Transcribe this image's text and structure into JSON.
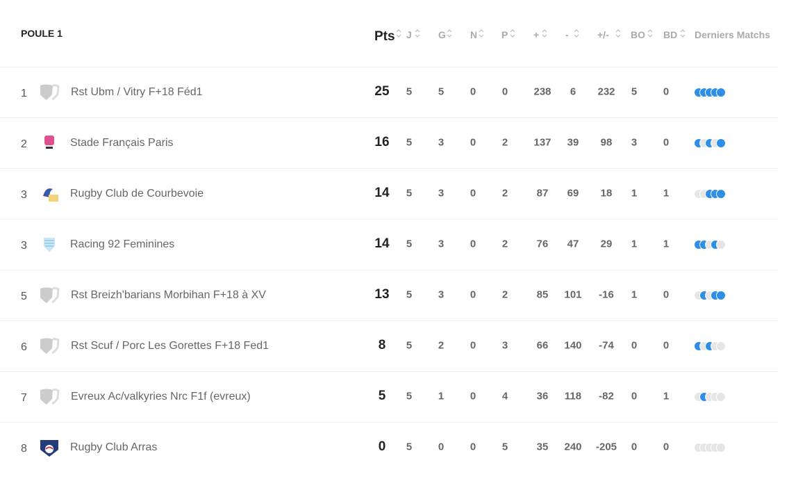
{
  "title": "POULE 1",
  "table": {
    "headers": [
      "Pts",
      "J",
      "G",
      "N",
      "P",
      "+",
      "-",
      "+/-",
      "BO",
      "BD",
      "Derniers Matchs"
    ],
    "rows": [
      {
        "rank": 1,
        "team": "Rst Ubm / Vitry F+18 Féd1",
        "pts": 25,
        "j": 5,
        "g": 5,
        "n": 0,
        "p": 0,
        "plus": 238,
        "minus": 6,
        "diff": 232,
        "bo": 5,
        "bd": 0,
        "form": [
          true,
          true,
          true,
          true,
          true
        ]
      },
      {
        "rank": 2,
        "team": "Stade Français Paris",
        "pts": 16,
        "j": 5,
        "g": 3,
        "n": 0,
        "p": 2,
        "plus": 137,
        "minus": 39,
        "diff": 98,
        "bo": 3,
        "bd": 0,
        "form": [
          true,
          false,
          true,
          false,
          true
        ]
      },
      {
        "rank": 3,
        "team": "Rugby Club de Courbevoie",
        "pts": 14,
        "j": 5,
        "g": 3,
        "n": 0,
        "p": 2,
        "plus": 87,
        "minus": 69,
        "diff": 18,
        "bo": 1,
        "bd": 1,
        "form": [
          false,
          false,
          true,
          true,
          true
        ]
      },
      {
        "rank": 3,
        "team": "Racing 92 Feminines",
        "pts": 14,
        "j": 5,
        "g": 3,
        "n": 0,
        "p": 2,
        "plus": 76,
        "minus": 47,
        "diff": 29,
        "bo": 1,
        "bd": 1,
        "form": [
          true,
          true,
          false,
          true,
          false
        ]
      },
      {
        "rank": 5,
        "team": "Rst Breizh'barians Morbihan F+18 à XV",
        "pts": 13,
        "j": 5,
        "g": 3,
        "n": 0,
        "p": 2,
        "plus": 85,
        "minus": 101,
        "diff": -16,
        "bo": 1,
        "bd": 0,
        "form": [
          false,
          true,
          false,
          true,
          true
        ]
      },
      {
        "rank": 6,
        "team": "Rst Scuf / Porc Les Gorettes F+18 Fed1",
        "pts": 8,
        "j": 5,
        "g": 2,
        "n": 0,
        "p": 3,
        "plus": 66,
        "minus": 140,
        "diff": -74,
        "bo": 0,
        "bd": 0,
        "form": [
          true,
          false,
          true,
          false,
          false
        ]
      },
      {
        "rank": 7,
        "team": "Evreux Ac/valkyries Nrc F1f (evreux)",
        "pts": 5,
        "j": 5,
        "g": 1,
        "n": 0,
        "p": 4,
        "plus": 36,
        "minus": 118,
        "diff": -82,
        "bo": 0,
        "bd": 1,
        "form": [
          false,
          true,
          false,
          false,
          false
        ]
      },
      {
        "rank": 8,
        "team": "Rugby Club Arras",
        "pts": 0,
        "j": 5,
        "g": 0,
        "n": 0,
        "p": 5,
        "plus": 35,
        "minus": 240,
        "diff": -205,
        "bo": 0,
        "bd": 0,
        "form": [
          false,
          false,
          false,
          false,
          false
        ]
      }
    ]
  }
}
